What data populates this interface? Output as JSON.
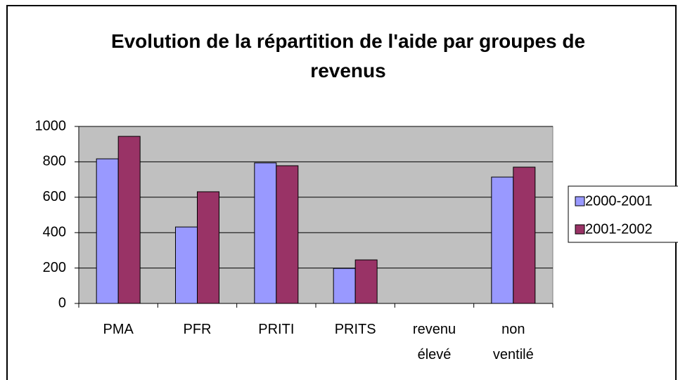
{
  "chart_data": {
    "type": "bar",
    "title": "Evolution de la répartition de l'aide par groupes de revenus",
    "categories": [
      "PMA",
      "PFR",
      "PRITI",
      "PRITS",
      "revenu élevé",
      "non ventilé"
    ],
    "series": [
      {
        "name": "2000-2001",
        "color": "#9999ff",
        "values": [
          817,
          432,
          794,
          198,
          0,
          714
        ]
      },
      {
        "name": "2001-2002",
        "color": "#993366",
        "values": [
          944,
          631,
          778,
          246,
          0,
          770
        ]
      }
    ],
    "ylim": [
      0,
      1000
    ],
    "yticks": [
      0,
      200,
      400,
      600,
      800,
      1000
    ],
    "grid": true,
    "legend": "right",
    "plot_background": "#c0c0c0"
  }
}
